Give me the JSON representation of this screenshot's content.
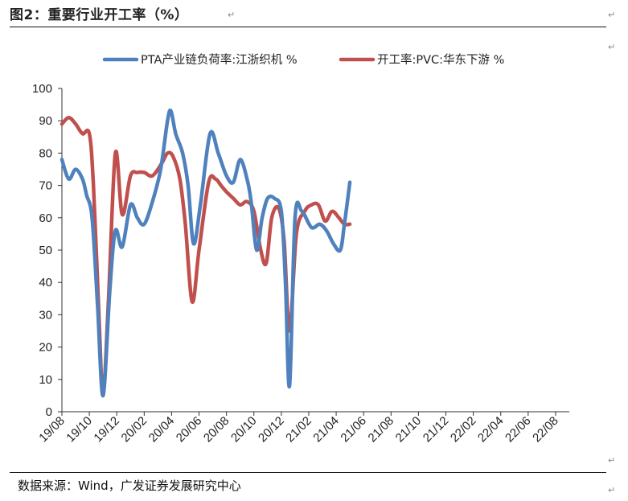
{
  "figure": {
    "title": "图2：重要行业开工率（%）",
    "source": "数据来源：Wind，广发证券发展研究中心",
    "para_mark": "↵"
  },
  "chart_data": {
    "type": "line",
    "title": "",
    "xlabel": "",
    "ylabel": "",
    "ylim": [
      0,
      100
    ],
    "yticks": [
      0,
      10,
      20,
      30,
      40,
      50,
      60,
      70,
      80,
      90,
      100
    ],
    "x_start": "2019-08",
    "x_end": "2022-09",
    "x_ticks": [
      "19/08",
      "19/10",
      "19/12",
      "20/02",
      "20/04",
      "20/06",
      "20/08",
      "20/10",
      "20/12",
      "21/02",
      "21/04",
      "21/06",
      "21/08",
      "21/10",
      "21/12",
      "22/02",
      "22/04",
      "22/06",
      "22/08"
    ],
    "grid": false,
    "legend": "top",
    "series": [
      {
        "name": "PTA产业链负荷率:江浙织机 %",
        "color": "#4F81BD",
        "points": [
          [
            0.0,
            78
          ],
          [
            0.5,
            72
          ],
          [
            1.0,
            75
          ],
          [
            1.5,
            72
          ],
          [
            1.8,
            67
          ],
          [
            2.2,
            60
          ],
          [
            2.6,
            33
          ],
          [
            3.0,
            5
          ],
          [
            3.5,
            38
          ],
          [
            3.9,
            56
          ],
          [
            4.4,
            51
          ],
          [
            5.0,
            64
          ],
          [
            5.5,
            60
          ],
          [
            6.0,
            58
          ],
          [
            6.6,
            65
          ],
          [
            7.2,
            75
          ],
          [
            7.7,
            90
          ],
          [
            7.95,
            93
          ],
          [
            8.3,
            86
          ],
          [
            8.8,
            80
          ],
          [
            9.2,
            70
          ],
          [
            9.6,
            52
          ],
          [
            10.1,
            64
          ],
          [
            10.8,
            86
          ],
          [
            11.4,
            80
          ],
          [
            12.0,
            73
          ],
          [
            12.5,
            71
          ],
          [
            13.0,
            78
          ],
          [
            13.5,
            72
          ],
          [
            13.8,
            65
          ],
          [
            14.2,
            50
          ],
          [
            14.6,
            60
          ],
          [
            15.0,
            66
          ],
          [
            15.5,
            66
          ],
          [
            16.0,
            62
          ],
          [
            16.3,
            40
          ],
          [
            16.6,
            8
          ],
          [
            17.0,
            60
          ],
          [
            17.5,
            62
          ],
          [
            18.2,
            57
          ],
          [
            18.8,
            58
          ],
          [
            19.3,
            56
          ],
          [
            19.8,
            52
          ],
          [
            20.3,
            50
          ],
          [
            20.6,
            58
          ],
          [
            21.0,
            71
          ]
        ]
      },
      {
        "name": "开工率:PVC:华东下游 %",
        "color": "#C0504D",
        "points": [
          [
            0.0,
            89
          ],
          [
            0.5,
            91
          ],
          [
            1.0,
            89
          ],
          [
            1.5,
            86
          ],
          [
            2.0,
            86
          ],
          [
            2.3,
            70
          ],
          [
            2.7,
            30
          ],
          [
            3.0,
            5
          ],
          [
            3.4,
            35
          ],
          [
            3.9,
            80
          ],
          [
            4.4,
            61
          ],
          [
            5.0,
            73
          ],
          [
            5.5,
            74
          ],
          [
            6.0,
            74
          ],
          [
            6.6,
            73
          ],
          [
            7.3,
            77
          ],
          [
            7.7,
            80
          ],
          [
            8.1,
            79
          ],
          [
            8.6,
            72
          ],
          [
            9.0,
            58
          ],
          [
            9.5,
            34
          ],
          [
            10.0,
            50
          ],
          [
            10.7,
            71
          ],
          [
            11.2,
            72
          ],
          [
            11.6,
            70
          ],
          [
            12.0,
            68
          ],
          [
            12.5,
            66
          ],
          [
            13.0,
            64
          ],
          [
            13.5,
            65
          ],
          [
            14.0,
            62
          ],
          [
            14.5,
            50
          ],
          [
            14.9,
            46
          ],
          [
            15.3,
            60
          ],
          [
            15.8,
            63
          ],
          [
            16.2,
            53
          ],
          [
            16.6,
            25
          ],
          [
            17.1,
            55
          ],
          [
            17.7,
            62
          ],
          [
            18.2,
            64
          ],
          [
            18.7,
            64
          ],
          [
            19.2,
            59
          ],
          [
            19.7,
            62
          ],
          [
            20.2,
            60
          ],
          [
            20.6,
            58
          ],
          [
            21.0,
            58
          ]
        ]
      }
    ]
  }
}
